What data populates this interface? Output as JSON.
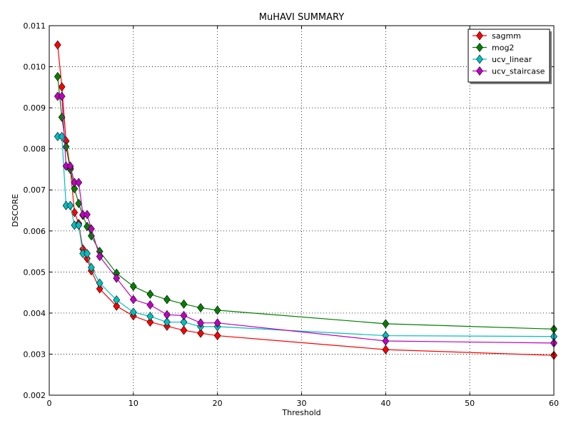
{
  "chart_data": {
    "type": "line",
    "title": "MuHAVI SUMMARY",
    "xlabel": "Threshold",
    "ylabel": "DSCORE",
    "xlim": [
      0,
      60
    ],
    "ylim": [
      0.002,
      0.011
    ],
    "xticks": [
      "0",
      "10",
      "20",
      "30",
      "40",
      "50",
      "60"
    ],
    "yticks": [
      "0.002",
      "0.003",
      "0.004",
      "0.005",
      "0.006",
      "0.007",
      "0.008",
      "0.009",
      "0.010",
      "0.011"
    ],
    "grid": true,
    "legend_position": "top-right",
    "x": [
      1,
      1.5,
      2,
      2.5,
      3,
      3.5,
      4,
      4.5,
      5,
      6,
      8,
      10,
      12,
      14,
      16,
      18,
      20,
      40,
      60
    ],
    "series": [
      {
        "name": "sagmm",
        "color": "#ff0000",
        "values": [
          0.01053,
          0.00951,
          0.00819,
          0.00753,
          0.00645,
          0.00618,
          0.00556,
          0.00533,
          0.00503,
          0.00459,
          0.00417,
          0.00393,
          0.00378,
          0.00368,
          0.00358,
          0.00351,
          0.00345,
          0.00311,
          0.00297
        ]
      },
      {
        "name": "mog2",
        "color": "#008000",
        "values": [
          0.00976,
          0.00877,
          0.00805,
          0.0075,
          0.00703,
          0.00667,
          0.00638,
          0.00611,
          0.00588,
          0.0055,
          0.00497,
          0.00465,
          0.00446,
          0.00433,
          0.00422,
          0.00413,
          0.00407,
          0.00374,
          0.00361
        ]
      },
      {
        "name": "ucv_linear",
        "color": "#00bfbf",
        "values": [
          0.0083,
          0.0083,
          0.00662,
          0.00662,
          0.00614,
          0.00614,
          0.00545,
          0.00545,
          0.00511,
          0.00473,
          0.00432,
          0.00402,
          0.00392,
          0.00378,
          0.00378,
          0.00367,
          0.00367,
          0.00345,
          0.00343
        ]
      },
      {
        "name": "ucv_staircase",
        "color": "#bf00bf",
        "values": [
          0.00928,
          0.00928,
          0.00758,
          0.00758,
          0.00718,
          0.00718,
          0.0064,
          0.0064,
          0.00605,
          0.00538,
          0.00485,
          0.00433,
          0.0042,
          0.00396,
          0.00394,
          0.00376,
          0.00376,
          0.00332,
          0.00327
        ]
      }
    ]
  }
}
